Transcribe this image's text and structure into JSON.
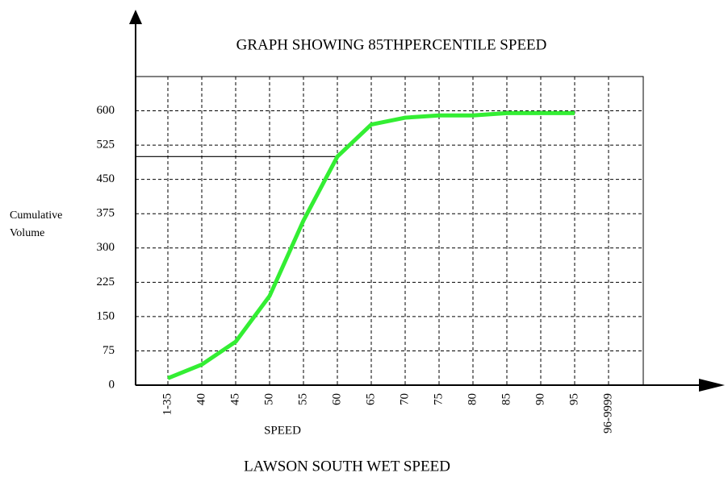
{
  "chart_data": {
    "type": "line",
    "title": "GRAPH SHOWING 85THPERCENTILE SPEED",
    "caption": "LAWSON SOUTH WET  SPEED",
    "x_label": "SPEED",
    "y_label": [
      "Cumulative",
      "Volume"
    ],
    "categories": [
      "1-35",
      "40",
      "45",
      "50",
      "55",
      "60",
      "65",
      "70",
      "75",
      "80",
      "85",
      "90",
      "95",
      "96-9999"
    ],
    "series": [
      {
        "name": "Cumulative Volume",
        "color": "#33ee33",
        "values": [
          15,
          45,
          95,
          195,
          360,
          500,
          570,
          585,
          590,
          590,
          595,
          595,
          595,
          null
        ]
      }
    ],
    "reference_value": 500,
    "ylim": [
      0,
      675
    ],
    "yticks": [
      0,
      75,
      150,
      225,
      300,
      375,
      450,
      525,
      600
    ],
    "grid": true
  }
}
